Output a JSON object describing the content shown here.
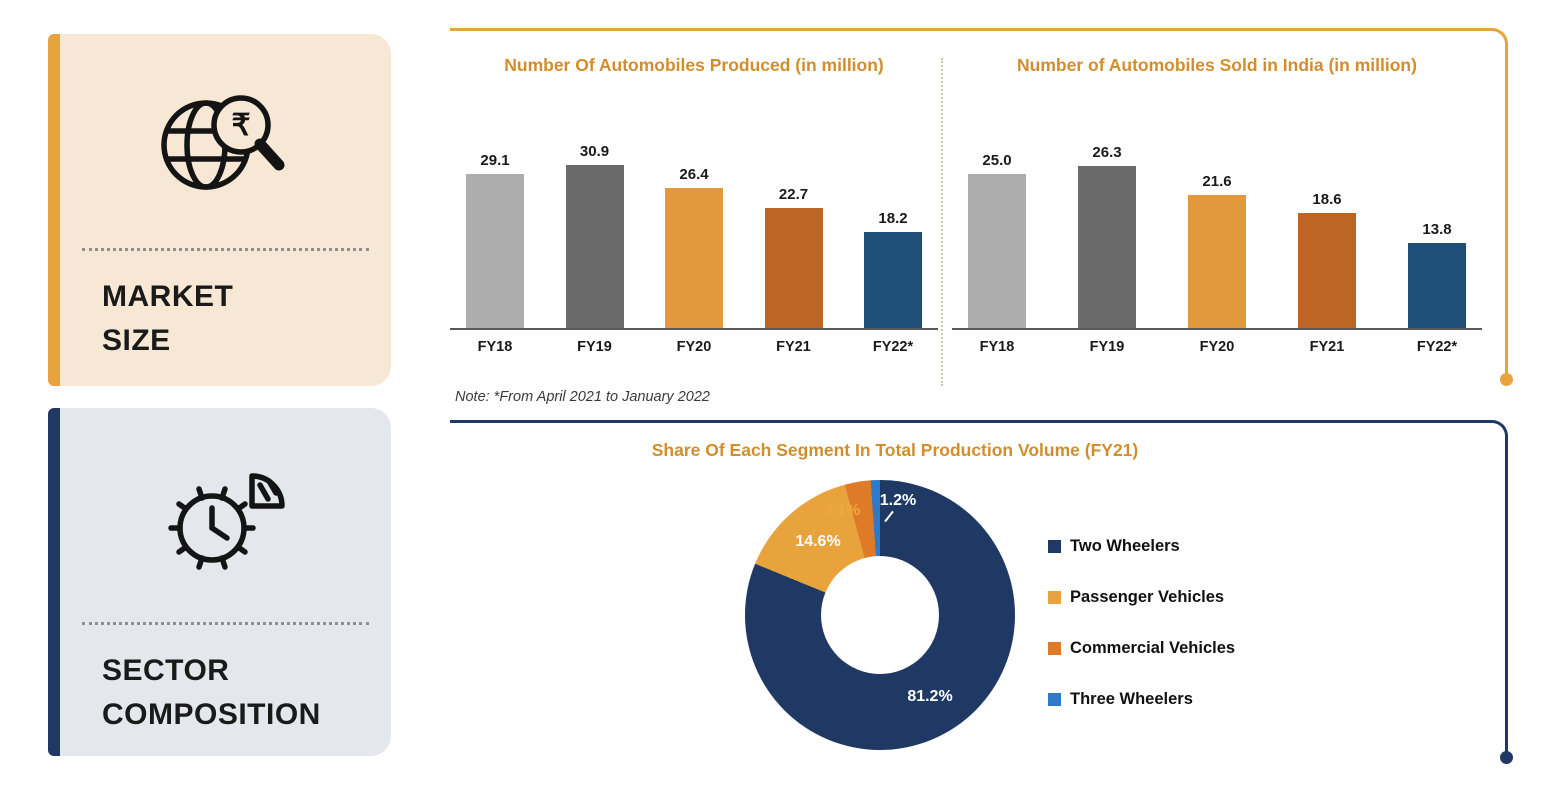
{
  "colors": {
    "accent_orange": "#E8A33D",
    "accent_navy": "#1F3864",
    "chart_title_orange": "#D28E2C"
  },
  "sidebar": {
    "market_size": {
      "label": "MARKET\nSIZE"
    },
    "sector_composition": {
      "label": "SECTOR\nCOMPOSITION"
    }
  },
  "chart_data": [
    {
      "type": "bar",
      "title": "Number Of Automobiles Produced (in million)",
      "categories": [
        "FY18",
        "FY19",
        "FY20",
        "FY21",
        "FY22*"
      ],
      "values": [
        29.1,
        30.9,
        26.4,
        22.7,
        18.2
      ],
      "bar_colors": [
        "#ADADAD",
        "#6A6A6A",
        "#E2993B",
        "#BD6524",
        "#1F4E79"
      ],
      "ylim": [
        0,
        35
      ],
      "grid": false,
      "note": "Note: *From April 2021 to January 2022"
    },
    {
      "type": "bar",
      "title": "Number of Automobiles Sold in India (in million)",
      "categories": [
        "FY18",
        "FY19",
        "FY20",
        "FY21",
        "FY22*"
      ],
      "values": [
        25.0,
        26.3,
        21.6,
        18.6,
        13.8
      ],
      "bar_colors": [
        "#ADADAD",
        "#6A6A6A",
        "#E2993B",
        "#BD6524",
        "#1F4E79"
      ],
      "ylim": [
        0,
        30
      ],
      "grid": false
    },
    {
      "type": "pie",
      "donut": true,
      "title": "Share Of Each Segment In Total Production Volume (FY21)",
      "labels": [
        "Two Wheelers",
        "Passenger Vehicles",
        "Commercial Vehicles",
        "Three Wheelers"
      ],
      "values": [
        81.2,
        14.6,
        3.1,
        1.2
      ],
      "colors": [
        "#1F3864",
        "#E8A33D",
        "#DF7A28",
        "#2E79C9"
      ],
      "legend_position": "right"
    }
  ]
}
